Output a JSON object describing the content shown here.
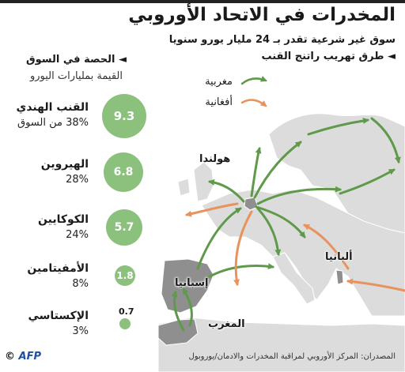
{
  "title": "المخدرات في الاتحاد الأوروبي",
  "subtitle": "سوق غير شرعية تقدر بـ 24 مليار يورو سنويا",
  "routes_heading": "◄ طرق تهريب راتنج القنب",
  "legend": {
    "items": [
      {
        "label": "مغربية",
        "color": "#5e9a4a"
      },
      {
        "label": "أفغانية",
        "color": "#e8925c"
      }
    ]
  },
  "market": {
    "heading": "◄ الحصة في السوق",
    "subheading": "القيمة بمليارات اليورو",
    "drugs": [
      {
        "name": "القنب الهندي",
        "value": "9.3",
        "share": "38% من السوق"
      },
      {
        "name": "الهيروين",
        "value": "6.8",
        "share": "28%"
      },
      {
        "name": "الكوكايين",
        "value": "5.7",
        "share": "24%"
      },
      {
        "name": "الأمفيتامين",
        "value": "1.8",
        "share": "8%"
      },
      {
        "name": "الإكستاسي",
        "value": "0.7",
        "share": "3%"
      }
    ]
  },
  "map_labels": {
    "netherlands": "هولندا",
    "spain": "إسبانيا",
    "morocco": "المغرب",
    "albania": "ألبانيا"
  },
  "source": "المصدران: المركز الأوروبي لمراقبة المخدرات والادمان/يوروبول",
  "credit": {
    "copyright": "©",
    "agency": "AFP"
  },
  "colors": {
    "moroccan_route": "#5e9a4a",
    "afghan_route": "#e8925c",
    "circle_fill": "#8cc07d",
    "land": "#dcdcdc",
    "highlight_land": "#8f8f8f"
  }
}
